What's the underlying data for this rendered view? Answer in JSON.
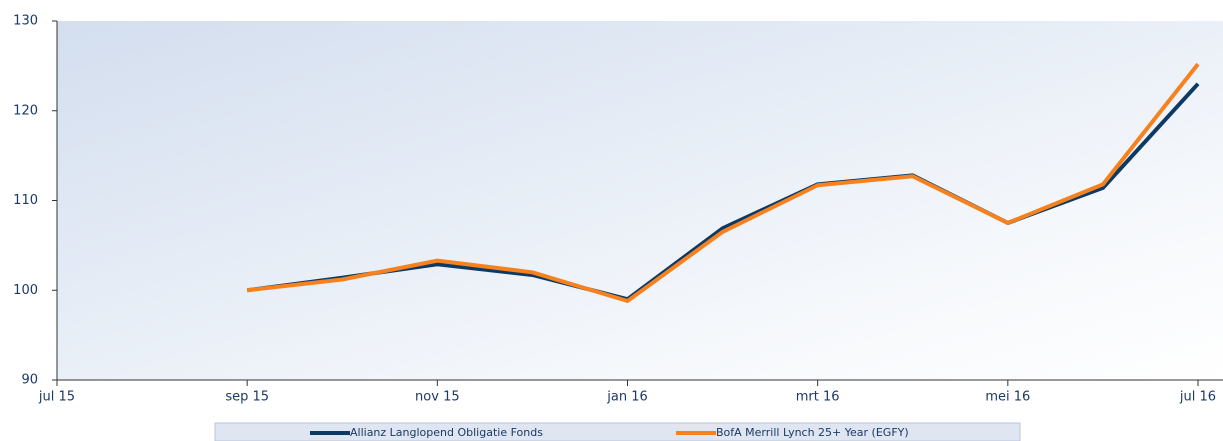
{
  "chart_data": {
    "type": "line",
    "categories": [
      "jul 15",
      null,
      "sep 15",
      null,
      "nov 15",
      null,
      "jan 16",
      null,
      "mrt 16",
      null,
      "mei 16",
      null,
      "jul 16"
    ],
    "series": [
      {
        "name": "Allianz Langlopend Obligatie Fonds",
        "color": "#0d3a64",
        "values": [
          null,
          null,
          100,
          101.4,
          102.9,
          101.7,
          99.0,
          106.9,
          111.8,
          112.8,
          107.5,
          111.4,
          123.0
        ]
      },
      {
        "name": "BofA Merrill Lynch 25+ Year (EGFY)",
        "color": "#f5821f",
        "values": [
          null,
          null,
          100,
          101.2,
          103.3,
          102.0,
          98.8,
          106.5,
          111.7,
          112.7,
          107.5,
          111.8,
          125.2
        ]
      }
    ],
    "ylim": [
      90,
      130
    ],
    "yticks": [
      90,
      100,
      110,
      120,
      130
    ],
    "grid": false,
    "legend": "bottom"
  }
}
